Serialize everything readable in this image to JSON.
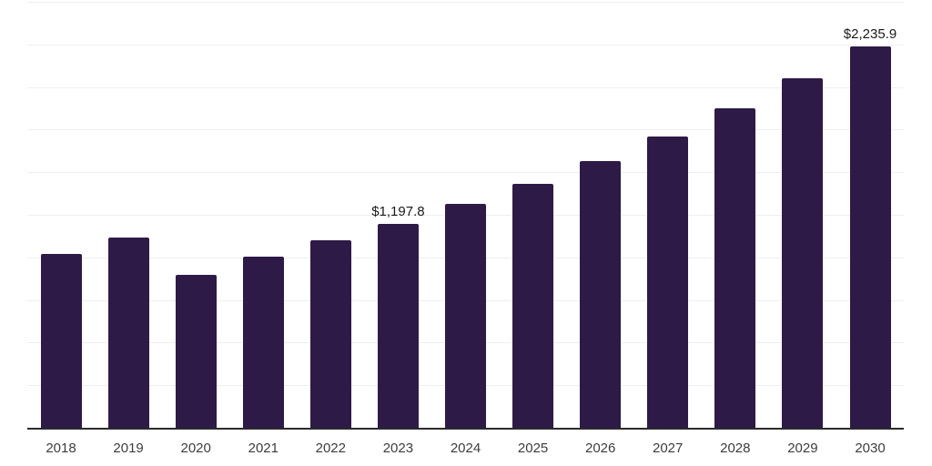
{
  "chart_data": {
    "type": "bar",
    "title": "",
    "xlabel": "",
    "ylabel": "",
    "categories": [
      "2018",
      "2019",
      "2020",
      "2021",
      "2022",
      "2023",
      "2024",
      "2025",
      "2026",
      "2027",
      "2028",
      "2029",
      "2030"
    ],
    "values": [
      1020,
      1117,
      898,
      1004,
      1101,
      1197.8,
      1313,
      1434,
      1565,
      1712,
      1874,
      2053,
      2235.9
    ],
    "data_labels": [
      {
        "category": "2023",
        "text": "$1,197.8"
      },
      {
        "category": "2030",
        "text": "$2,235.9"
      }
    ],
    "ylim": [
      0,
      2500
    ],
    "grid_step": 250,
    "grid": "horizontal-only",
    "legend": "none",
    "colors": {
      "bar": "#2E1A47",
      "gridline": "#efefef",
      "axis_line": "#2b2b2b",
      "tick_label": "#3d3d3d",
      "data_label": "#1a1a1a",
      "background": "#ffffff"
    }
  }
}
